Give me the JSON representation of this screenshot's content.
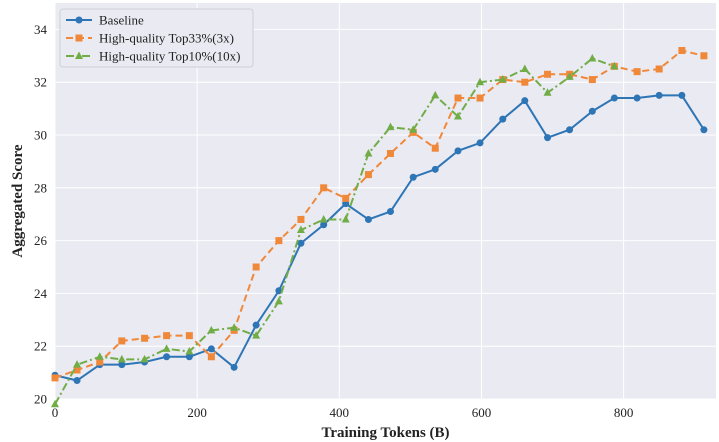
{
  "chart_data": {
    "type": "line",
    "xlabel": "Training Tokens (B)",
    "ylabel": "Aggregated Score",
    "xlim": [
      0,
      930
    ],
    "ylim": [
      20,
      35
    ],
    "xticks": [
      0,
      200,
      400,
      600,
      800
    ],
    "yticks": [
      20,
      22,
      24,
      26,
      28,
      30,
      32,
      34
    ],
    "grid": true,
    "legend_position": "top-left",
    "background": "#eaeaf2",
    "series": [
      {
        "name": "Baseline",
        "color": "#2e75b6",
        "linestyle": "solid",
        "marker": "circle",
        "x": [
          0,
          31,
          63,
          94,
          126,
          157,
          189,
          220,
          252,
          283,
          315,
          346,
          378,
          409,
          441,
          472,
          504,
          535,
          567,
          598,
          630,
          661,
          693,
          724,
          756,
          787,
          819,
          850,
          882,
          913
        ],
        "y": [
          20.9,
          20.7,
          21.3,
          21.3,
          21.4,
          21.6,
          21.6,
          21.9,
          21.2,
          22.8,
          24.1,
          25.9,
          26.6,
          27.4,
          26.8,
          27.1,
          28.4,
          28.7,
          29.4,
          29.7,
          30.6,
          31.3,
          29.9,
          30.2,
          30.9,
          31.4,
          31.4,
          31.5,
          31.5,
          30.2
        ]
      },
      {
        "name": "High-quality Top33%(3x)",
        "color": "#f0883a",
        "linestyle": "dashed",
        "marker": "square",
        "x": [
          0,
          31,
          63,
          94,
          126,
          157,
          189,
          220,
          252,
          283,
          315,
          346,
          378,
          409,
          441,
          472,
          504,
          535,
          567,
          598,
          630,
          661,
          693,
          724,
          756,
          787,
          819,
          850,
          882,
          913
        ],
        "y": [
          20.8,
          21.1,
          21.4,
          22.2,
          22.3,
          22.4,
          22.4,
          21.6,
          22.6,
          25.0,
          26.0,
          26.8,
          28.0,
          27.6,
          28.5,
          29.3,
          30.1,
          29.5,
          31.4,
          31.4,
          32.1,
          32.0,
          32.3,
          32.3,
          32.1,
          32.6,
          32.4,
          32.5,
          33.2,
          33.0
        ]
      },
      {
        "name": "High-quality Top10%(10x)",
        "color": "#70ad47",
        "linestyle": "dashdot",
        "marker": "triangle",
        "x": [
          0,
          31,
          63,
          94,
          126,
          157,
          189,
          220,
          252,
          283,
          315,
          346,
          378,
          409,
          441,
          472,
          504,
          535,
          567,
          598,
          630,
          661,
          693,
          724,
          756,
          787
        ],
        "y": [
          19.8,
          21.3,
          21.6,
          21.5,
          21.5,
          21.9,
          21.8,
          22.6,
          22.7,
          22.4,
          23.7,
          26.4,
          26.8,
          26.8,
          29.3,
          30.3,
          30.2,
          31.5,
          30.7,
          32.0,
          32.1,
          32.5,
          31.6,
          32.2,
          32.9,
          32.6
        ]
      }
    ]
  }
}
